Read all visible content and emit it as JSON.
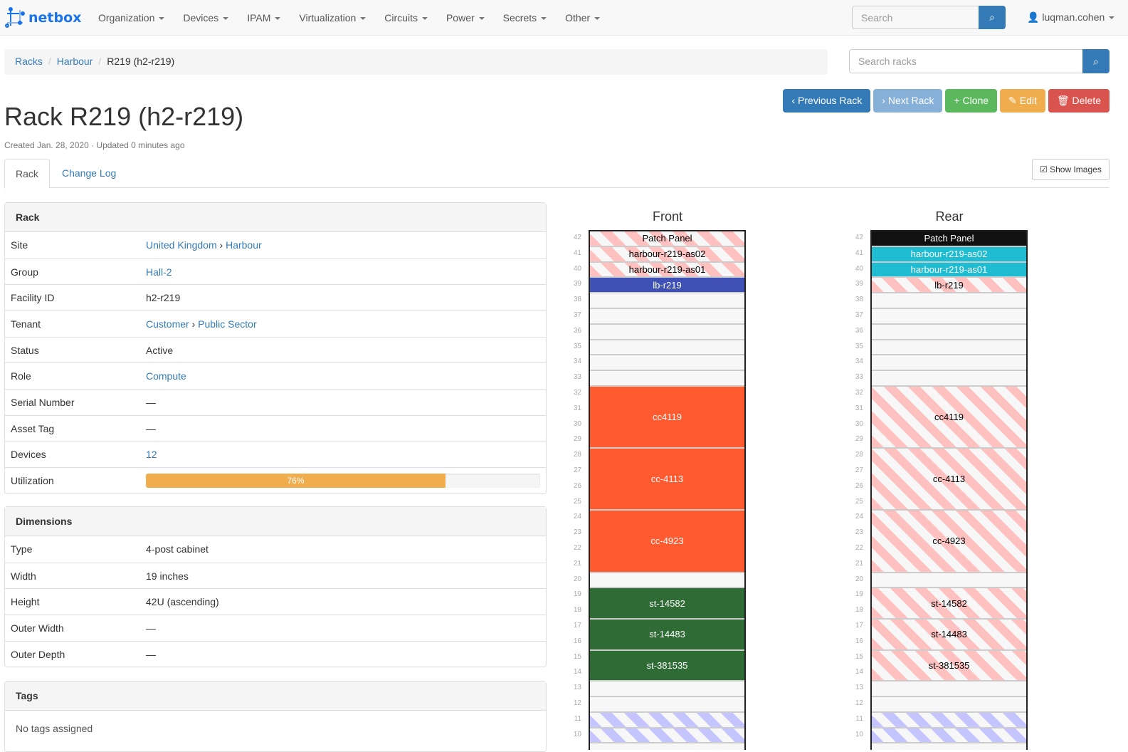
{
  "nav": {
    "brand": "netbox",
    "menu": [
      "Organization",
      "Devices",
      "IPAM",
      "Virtualization",
      "Circuits",
      "Power",
      "Secrets",
      "Other"
    ],
    "search_placeholder": "Search",
    "user": "luqman.cohen"
  },
  "breadcrumb": [
    "Racks",
    "Harbour",
    "R219 (h2-r219)"
  ],
  "rack_search_placeholder": "Search racks",
  "buttons": [
    {
      "label": "Previous Rack",
      "color": "#337ab7",
      "icon": "‹"
    },
    {
      "label": "Next Rack",
      "color": "#87b0d9",
      "icon": "›"
    },
    {
      "label": "Clone",
      "color": "#5cb85c",
      "icon": "+"
    },
    {
      "label": "Edit",
      "color": "#f0ad4e",
      "icon": "✎"
    },
    {
      "label": "Delete",
      "color": "#d9534f",
      "icon": "🗑"
    }
  ],
  "title": "Rack R219 (h2-r219)",
  "subtitle": "Created Jan. 28, 2020 · Updated 0 minutes ago",
  "tabs": [
    "Rack",
    "Change Log"
  ],
  "show_images": "Show Images",
  "rack_panel": {
    "heading": "Rack",
    "rows": [
      {
        "k": "Site",
        "v": [
          "United Kingdom",
          "Harbour"
        ],
        "link": true
      },
      {
        "k": "Group",
        "v": [
          "Hall-2"
        ],
        "link": true
      },
      {
        "k": "Facility ID",
        "v": [
          "h2-r219"
        ]
      },
      {
        "k": "Tenant",
        "v": [
          "Customer",
          "Public Sector"
        ],
        "link": true
      },
      {
        "k": "Status",
        "v": [
          "Active"
        ]
      },
      {
        "k": "Role",
        "v": [
          "Compute"
        ],
        "link": true
      },
      {
        "k": "Serial Number",
        "v": [
          "—"
        ]
      },
      {
        "k": "Asset Tag",
        "v": [
          "—"
        ]
      },
      {
        "k": "Devices",
        "v": [
          "12"
        ],
        "link": true
      }
    ],
    "utilization_label": "Utilization",
    "utilization": 76,
    "utilization_text": "76%"
  },
  "dimensions": {
    "heading": "Dimensions",
    "rows": [
      {
        "k": "Type",
        "v": "4-post cabinet"
      },
      {
        "k": "Width",
        "v": "19 inches"
      },
      {
        "k": "Height",
        "v": "42U (ascending)"
      },
      {
        "k": "Outer Width",
        "v": "—"
      },
      {
        "k": "Outer Depth",
        "v": "—"
      }
    ]
  },
  "tags": {
    "heading": "Tags",
    "empty": "No tags assigned"
  },
  "elevation": {
    "front_title": "Front",
    "rear_title": "Rear",
    "units_visible": [
      42,
      10
    ],
    "front": [
      {
        "name": "Patch Panel",
        "top": 42,
        "size": 1,
        "style": "pink"
      },
      {
        "name": "harbour-r219-as02",
        "top": 41,
        "size": 1,
        "style": "pink"
      },
      {
        "name": "harbour-r219-as01",
        "top": 40,
        "size": 1,
        "style": "pink"
      },
      {
        "name": "lb-r219",
        "top": 39,
        "size": 1,
        "color": "#3f51b5"
      },
      {
        "name": "cc4119",
        "top": 32,
        "size": 4,
        "color": "#ff5a30"
      },
      {
        "name": "cc-4113",
        "top": 28,
        "size": 4,
        "color": "#ff5a30"
      },
      {
        "name": "cc-4923",
        "top": 24,
        "size": 4,
        "color": "#ff5a30"
      },
      {
        "name": "st-14582",
        "top": 19,
        "size": 2,
        "color": "#2e6b35"
      },
      {
        "name": "st-14483",
        "top": 17,
        "size": 2,
        "color": "#2e6b35"
      },
      {
        "name": "st-381535",
        "top": 15,
        "size": 2,
        "color": "#2e6b35"
      },
      {
        "name": "",
        "top": 11,
        "size": 1,
        "style": "blue"
      },
      {
        "name": "",
        "top": 10,
        "size": 1,
        "style": "blue"
      }
    ],
    "rear": [
      {
        "name": "Patch Panel",
        "top": 42,
        "size": 1,
        "color": "#111111"
      },
      {
        "name": "harbour-r219-as02",
        "top": 41,
        "size": 1,
        "color": "#1fbcd2"
      },
      {
        "name": "harbour-r219-as01",
        "top": 40,
        "size": 1,
        "color": "#1fbcd2"
      },
      {
        "name": "lb-r219",
        "top": 39,
        "size": 1,
        "style": "pink"
      },
      {
        "name": "cc4119",
        "top": 32,
        "size": 4,
        "style": "pink"
      },
      {
        "name": "cc-4113",
        "top": 28,
        "size": 4,
        "style": "pink"
      },
      {
        "name": "cc-4923",
        "top": 24,
        "size": 4,
        "style": "pink"
      },
      {
        "name": "st-14582",
        "top": 19,
        "size": 2,
        "style": "pink"
      },
      {
        "name": "st-14483",
        "top": 17,
        "size": 2,
        "style": "pink"
      },
      {
        "name": "st-381535",
        "top": 15,
        "size": 2,
        "style": "pink"
      },
      {
        "name": "",
        "top": 11,
        "size": 1,
        "style": "blue"
      },
      {
        "name": "",
        "top": 10,
        "size": 1,
        "style": "blue"
      }
    ]
  }
}
